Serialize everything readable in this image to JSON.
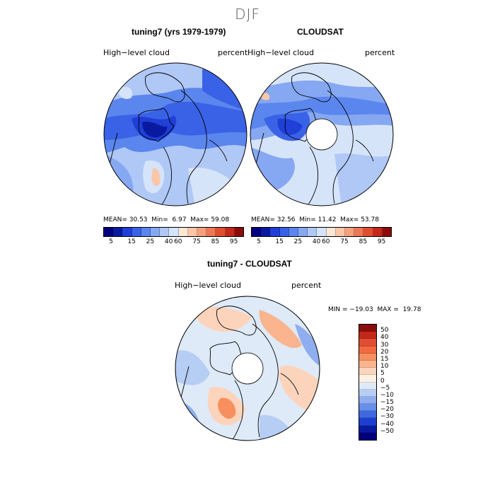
{
  "page_title": "DJF",
  "panels": [
    {
      "title": "tuning7 (yrs 1979-1979)",
      "left_label": "High−level cloud",
      "right_label": "percent",
      "mean_label": "MEAN=",
      "mean": "30.53",
      "min_label": "Min=",
      "min": "6.97",
      "max_label": "Max=",
      "max": "59.08"
    },
    {
      "title": "CLOUDSAT",
      "left_label": "High−level cloud",
      "right_label": "percent",
      "mean_label": "MEAN=",
      "mean": "32.56",
      "min_label": "Min=",
      "min": "11.42",
      "max_label": "Max=",
      "max": "53.78"
    },
    {
      "title": "tuning7 - CLOUDSAT",
      "left_label": "High−level cloud",
      "right_label": "percent",
      "minmax_text": "MIN = −19.03  MAX =  19.78"
    }
  ],
  "abs_colorbar": {
    "colors": [
      "#00007f",
      "#0a1aa0",
      "#1f3fd6",
      "#3a62e6",
      "#5b86ee",
      "#86a8f2",
      "#b0c8f6",
      "#d6e4fa",
      "#ffe7d6",
      "#fcc6a8",
      "#f7a07e",
      "#ee7855",
      "#e04e30",
      "#c4281a",
      "#8c0c0c"
    ],
    "tick_labels": [
      "5",
      "15",
      "25",
      "40",
      "60",
      "75",
      "85",
      "95"
    ]
  },
  "diff_colorbar": {
    "colors": [
      "#8c0c0c",
      "#c4281a",
      "#e04e30",
      "#f26a40",
      "#f7905e",
      "#fab48e",
      "#fcd4bc",
      "#fff0e4",
      "#deeaf8",
      "#b6cdf4",
      "#8faeef",
      "#678eea",
      "#4069e0",
      "#1c3fd0",
      "#0a1aa0",
      "#00007f"
    ],
    "tick_labels": [
      "50",
      "40",
      "30",
      "20",
      "15",
      "10",
      "5",
      "0",
      "−5",
      "−10",
      "−15",
      "−20",
      "−30",
      "−40",
      "−50"
    ]
  }
}
